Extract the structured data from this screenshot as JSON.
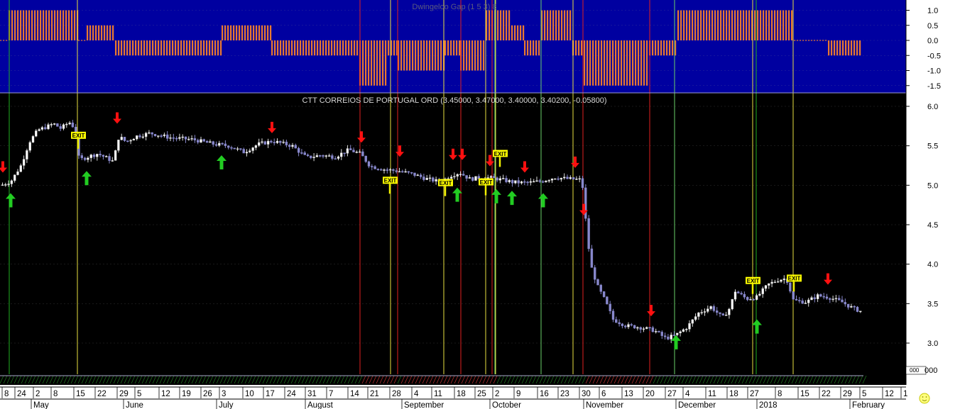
{
  "chart_data": [
    {
      "type": "bar",
      "title": "Dwingeloo Gap (1 5 3) 8",
      "y_axis_ticks": [
        "1.0",
        "0.5",
        "0.0",
        "-0.5",
        "-1.0",
        "-1.5"
      ],
      "ylim": [
        -1.6,
        1.2
      ],
      "series": [
        {
          "name": "signal",
          "segments": [
            {
              "start": 0,
              "end": 12,
              "value": 0
            },
            {
              "start": 12,
              "end": 110,
              "value": 1
            },
            {
              "start": 110,
              "end": 122,
              "value": 0
            },
            {
              "start": 122,
              "end": 162,
              "value": 0.5
            },
            {
              "start": 162,
              "end": 312,
              "value": -0.5
            },
            {
              "start": 312,
              "end": 382,
              "value": 0.5
            },
            {
              "start": 382,
              "end": 506,
              "value": -0.5
            },
            {
              "start": 506,
              "end": 546,
              "value": -1.5
            },
            {
              "start": 546,
              "end": 560,
              "value": -0.5
            },
            {
              "start": 560,
              "end": 626,
              "value": -1
            },
            {
              "start": 626,
              "end": 648,
              "value": -0.5
            },
            {
              "start": 648,
              "end": 684,
              "value": -1
            },
            {
              "start": 684,
              "end": 720,
              "value": 1
            },
            {
              "start": 720,
              "end": 738,
              "value": 0.5
            },
            {
              "start": 738,
              "end": 762,
              "value": -0.5
            },
            {
              "start": 762,
              "end": 806,
              "value": 1
            },
            {
              "start": 806,
              "end": 822,
              "value": -0.5
            },
            {
              "start": 822,
              "end": 914,
              "value": -1.5
            },
            {
              "start": 914,
              "end": 954,
              "value": -0.5
            },
            {
              "start": 954,
              "end": 1118,
              "value": 1
            },
            {
              "start": 1118,
              "end": 1166,
              "value": 0
            },
            {
              "start": 1166,
              "end": 1212,
              "value": -0.5
            }
          ]
        }
      ]
    },
    {
      "type": "candlestick",
      "title": "CTT CORREIOS DE PORTUGAL ORD (3.45000, 3.47000, 3.40000, 3.40200, -0.05800)",
      "y_axis_ticks": [
        "6.0",
        "5.5",
        "5.0",
        "4.5",
        "4.0",
        "3.5",
        "3.0"
      ],
      "ylim": [
        2.8,
        6.15
      ],
      "price_path": [
        [
          0,
          5.0
        ],
        [
          14,
          5.05
        ],
        [
          28,
          5.25
        ],
        [
          40,
          5.55
        ],
        [
          52,
          5.7
        ],
        [
          64,
          5.74
        ],
        [
          74,
          5.78
        ],
        [
          84,
          5.72
        ],
        [
          96,
          5.8
        ],
        [
          104,
          5.72
        ],
        [
          110,
          5.32
        ],
        [
          122,
          5.36
        ],
        [
          136,
          5.4
        ],
        [
          150,
          5.34
        ],
        [
          158,
          5.3
        ],
        [
          166,
          5.62
        ],
        [
          176,
          5.55
        ],
        [
          190,
          5.62
        ],
        [
          210,
          5.66
        ],
        [
          240,
          5.6
        ],
        [
          270,
          5.58
        ],
        [
          300,
          5.52
        ],
        [
          320,
          5.5
        ],
        [
          342,
          5.42
        ],
        [
          362,
          5.52
        ],
        [
          382,
          5.56
        ],
        [
          410,
          5.5
        ],
        [
          430,
          5.35
        ],
        [
          450,
          5.38
        ],
        [
          470,
          5.36
        ],
        [
          490,
          5.45
        ],
        [
          506,
          5.4
        ],
        [
          520,
          5.24
        ],
        [
          540,
          5.2
        ],
        [
          560,
          5.18
        ],
        [
          580,
          5.14
        ],
        [
          600,
          5.08
        ],
        [
          620,
          5.04
        ],
        [
          632,
          5.12
        ],
        [
          646,
          5.16
        ],
        [
          660,
          5.08
        ],
        [
          680,
          5.1
        ],
        [
          700,
          5.08
        ],
        [
          720,
          5.04
        ],
        [
          740,
          5.03
        ],
        [
          760,
          5.05
        ],
        [
          780,
          5.1
        ],
        [
          800,
          5.08
        ],
        [
          818,
          5.07
        ],
        [
          824,
          4.5
        ],
        [
          830,
          4.0
        ],
        [
          840,
          3.72
        ],
        [
          850,
          3.55
        ],
        [
          862,
          3.3
        ],
        [
          880,
          3.22
        ],
        [
          900,
          3.2
        ],
        [
          920,
          3.16
        ],
        [
          936,
          3.06
        ],
        [
          950,
          3.1
        ],
        [
          966,
          3.2
        ],
        [
          982,
          3.38
        ],
        [
          1000,
          3.46
        ],
        [
          1016,
          3.32
        ],
        [
          1026,
          3.44
        ],
        [
          1034,
          3.66
        ],
        [
          1050,
          3.56
        ],
        [
          1064,
          3.58
        ],
        [
          1080,
          3.74
        ],
        [
          1094,
          3.8
        ],
        [
          1106,
          3.82
        ],
        [
          1116,
          3.54
        ],
        [
          1134,
          3.52
        ],
        [
          1150,
          3.6
        ],
        [
          1166,
          3.58
        ],
        [
          1184,
          3.52
        ],
        [
          1200,
          3.44
        ],
        [
          1212,
          3.4
        ]
      ],
      "red_signal_arrows": [
        {
          "x": 4,
          "price": 5.16
        },
        {
          "x": 165,
          "price": 5.78
        },
        {
          "x": 383,
          "price": 5.66
        },
        {
          "x": 509,
          "price": 5.54
        },
        {
          "x": 563,
          "price": 5.36
        },
        {
          "x": 638,
          "price": 5.32
        },
        {
          "x": 651,
          "price": 5.32
        },
        {
          "x": 690,
          "price": 5.24
        },
        {
          "x": 739,
          "price": 5.16
        },
        {
          "x": 810,
          "price": 5.22
        },
        {
          "x": 822,
          "price": 4.62
        },
        {
          "x": 917,
          "price": 3.34
        },
        {
          "x": 1166,
          "price": 3.74
        }
      ],
      "green_signal_arrows": [
        {
          "x": 15,
          "price": 4.9
        },
        {
          "x": 122,
          "price": 5.18
        },
        {
          "x": 312,
          "price": 5.38
        },
        {
          "x": 644,
          "price": 4.97
        },
        {
          "x": 699,
          "price": 4.95
        },
        {
          "x": 721,
          "price": 4.93
        },
        {
          "x": 765,
          "price": 4.9
        },
        {
          "x": 952,
          "price": 3.1
        },
        {
          "x": 1066,
          "price": 3.3
        }
      ],
      "exit_labels": [
        {
          "x": 110,
          "price": 5.66,
          "text": "EXIT"
        },
        {
          "x": 549,
          "price": 5.09,
          "text": "EXIT"
        },
        {
          "x": 627,
          "price": 5.06,
          "text": "EXIT"
        },
        {
          "x": 684,
          "price": 5.07,
          "text": "EXIT"
        },
        {
          "x": 704,
          "price": 5.43,
          "text": "EXIT"
        },
        {
          "x": 1060,
          "price": 3.82,
          "text": "EXIT"
        },
        {
          "x": 1118,
          "price": 3.85,
          "text": "EXIT"
        }
      ],
      "signal_lines": {
        "green": [
          13,
          1065
        ],
        "yellow": [
          109,
          550,
          625,
          684,
          698,
          807,
          1060,
          1117
        ],
        "red": [
          507,
          560,
          649,
          693,
          821,
          915
        ],
        "limegreen": [
          697,
          762,
          950
        ]
      },
      "volume_axis_label": "000",
      "volume_axis_value": "000"
    }
  ],
  "x_axis": {
    "day_ticks": [
      {
        "x": 6,
        "label": "8"
      },
      {
        "x": 24,
        "label": "24"
      },
      {
        "x": 50,
        "label": "2"
      },
      {
        "x": 75,
        "label": "8"
      },
      {
        "x": 107,
        "label": "15"
      },
      {
        "x": 137,
        "label": "22"
      },
      {
        "x": 168,
        "label": "29"
      },
      {
        "x": 193,
        "label": "5"
      },
      {
        "x": 227,
        "label": "12"
      },
      {
        "x": 256,
        "label": "19"
      },
      {
        "x": 286,
        "label": "26"
      },
      {
        "x": 312,
        "label": "3"
      },
      {
        "x": 345,
        "label": "10"
      },
      {
        "x": 374,
        "label": "17"
      },
      {
        "x": 404,
        "label": "24"
      },
      {
        "x": 433,
        "label": "31"
      },
      {
        "x": 463,
        "label": "7"
      },
      {
        "x": 493,
        "label": "14"
      },
      {
        "x": 521,
        "label": "21"
      },
      {
        "x": 552,
        "label": "28"
      },
      {
        "x": 583,
        "label": "4"
      },
      {
        "x": 611,
        "label": "11"
      },
      {
        "x": 643,
        "label": "18"
      },
      {
        "x": 672,
        "label": "25"
      },
      {
        "x": 697,
        "label": "2"
      },
      {
        "x": 727,
        "label": "9"
      },
      {
        "x": 760,
        "label": "16"
      },
      {
        "x": 789,
        "label": "23"
      },
      {
        "x": 819,
        "label": "30"
      },
      {
        "x": 847,
        "label": "6"
      },
      {
        "x": 879,
        "label": "13"
      },
      {
        "x": 909,
        "label": "20"
      },
      {
        "x": 940,
        "label": "27"
      },
      {
        "x": 965,
        "label": "4"
      },
      {
        "x": 997,
        "label": "11"
      },
      {
        "x": 1027,
        "label": "18"
      },
      {
        "x": 1056,
        "label": "27"
      },
      {
        "x": 1095,
        "label": "8"
      },
      {
        "x": 1127,
        "label": "15"
      },
      {
        "x": 1157,
        "label": "22"
      },
      {
        "x": 1187,
        "label": "29"
      },
      {
        "x": 1214,
        "label": "5"
      },
      {
        "x": 1246,
        "label": "12"
      },
      {
        "x": 1272,
        "label": "1"
      }
    ],
    "month_labels": [
      {
        "x": 47,
        "label": "May"
      },
      {
        "x": 177,
        "label": "June"
      },
      {
        "x": 308,
        "label": "July"
      },
      {
        "x": 433,
        "label": "August"
      },
      {
        "x": 569,
        "label": "September"
      },
      {
        "x": 693,
        "label": "October"
      },
      {
        "x": 825,
        "label": "November"
      },
      {
        "x": 955,
        "label": "December"
      },
      {
        "x": 1069,
        "label": "2018"
      },
      {
        "x": 1200,
        "label": "February"
      }
    ]
  },
  "colors": {
    "top_panel_bg": "#0000a0",
    "main_panel_bg": "#000000",
    "bars": "#e87830",
    "candles": "#8888cc",
    "candle_up": "#ffffff",
    "grid": "#6a6a6a",
    "axis_text": "#000000"
  },
  "icons": {
    "corner_badge": "smiley-icon"
  }
}
